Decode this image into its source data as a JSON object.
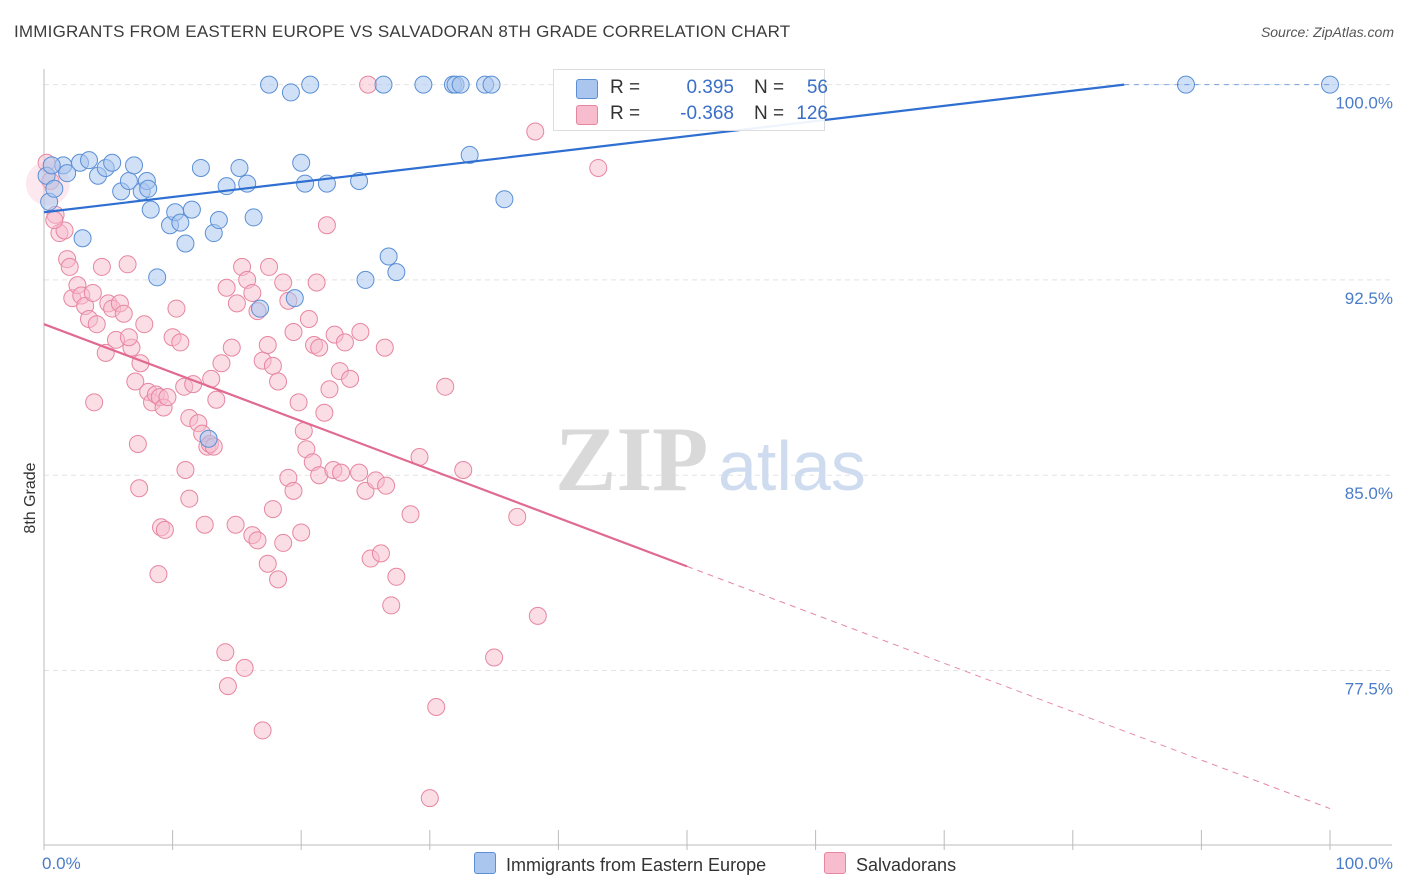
{
  "title": "IMMIGRANTS FROM EASTERN EUROPE VS SALVADORAN 8TH GRADE CORRELATION CHART",
  "source": "Source: ZipAtlas.com",
  "watermark": {
    "zip": "ZIP",
    "atlas": "atlas"
  },
  "colors": {
    "blue_fill": "#aac6ef",
    "blue_stroke": "#5b8fd6",
    "blue_line": "#2f6fd1",
    "pink_fill": "#f7bccd",
    "pink_stroke": "#e7869f",
    "pink_line": "#e06a92",
    "tick_text": "#4a7cc9",
    "grid": "#e3e3e3"
  },
  "legend": {
    "rows": [
      {
        "r_label": "R =",
        "r_value": "0.395",
        "n_label": "N =",
        "n_value": "56"
      },
      {
        "r_label": "R =",
        "r_value": "-0.368",
        "n_label": "N =",
        "n_value": "126"
      }
    ]
  },
  "chart_data": {
    "type": "scatter",
    "title": "IMMIGRANTS FROM EASTERN EUROPE VS SALVADORAN 8TH GRADE CORRELATION CHART",
    "xlabel": "",
    "ylabel": "8th Grade",
    "xlim": [
      0,
      100
    ],
    "ylim": [
      70.8,
      100.6
    ],
    "x_tick_labels": [
      "0.0%",
      "100.0%"
    ],
    "y_ticks": [
      77.5,
      85.0,
      92.5,
      100.0
    ],
    "y_tick_labels": [
      "77.5%",
      "85.0%",
      "92.5%",
      "100.0%"
    ],
    "grid": true,
    "legend_position": "bottom",
    "series": [
      {
        "name": "Immigrants from Eastern Europe",
        "color": "#aac6ef",
        "trend": {
          "x": [
            0,
            84.0
          ],
          "y": [
            95.1,
            100.0
          ],
          "dashed_from": 84.0,
          "dashed_to": 100.0
        },
        "points": [
          [
            0.2,
            96.5
          ],
          [
            0.4,
            95.5
          ],
          [
            0.8,
            96.0
          ],
          [
            1.5,
            96.9
          ],
          [
            1.8,
            96.6
          ],
          [
            2.8,
            97.0
          ],
          [
            3.5,
            97.1
          ],
          [
            4.2,
            96.5
          ],
          [
            4.8,
            96.8
          ],
          [
            5.3,
            97.0
          ],
          [
            6.0,
            95.9
          ],
          [
            6.6,
            96.3
          ],
          [
            7.0,
            96.9
          ],
          [
            7.6,
            95.9
          ],
          [
            8.0,
            96.3
          ],
          [
            8.3,
            95.2
          ],
          [
            8.8,
            92.6
          ],
          [
            9.8,
            94.6
          ],
          [
            10.2,
            95.1
          ],
          [
            10.6,
            94.7
          ],
          [
            11.0,
            93.9
          ],
          [
            11.5,
            95.2
          ],
          [
            12.2,
            96.8
          ],
          [
            13.2,
            94.3
          ],
          [
            13.6,
            94.8
          ],
          [
            14.2,
            96.1
          ],
          [
            15.2,
            96.8
          ],
          [
            15.8,
            96.2
          ],
          [
            16.3,
            94.9
          ],
          [
            16.8,
            91.4
          ],
          [
            17.5,
            100.0
          ],
          [
            19.2,
            99.7
          ],
          [
            20.0,
            97.0
          ],
          [
            20.3,
            96.2
          ],
          [
            20.7,
            100.0
          ],
          [
            19.5,
            91.8
          ],
          [
            22.0,
            96.2
          ],
          [
            24.5,
            96.3
          ],
          [
            25.0,
            92.5
          ],
          [
            26.4,
            100.0
          ],
          [
            26.8,
            93.4
          ],
          [
            27.4,
            92.8
          ],
          [
            29.5,
            100.0
          ],
          [
            31.8,
            100.0
          ],
          [
            32.0,
            100.0
          ],
          [
            32.4,
            100.0
          ],
          [
            33.1,
            97.3
          ],
          [
            34.3,
            100.0
          ],
          [
            34.8,
            100.0
          ],
          [
            35.8,
            95.6
          ],
          [
            88.8,
            100.0
          ],
          [
            100.0,
            100.0
          ],
          [
            0.6,
            96.9
          ],
          [
            12.8,
            86.4
          ],
          [
            8.1,
            96.0
          ],
          [
            3.0,
            94.1
          ]
        ]
      },
      {
        "name": "Salvadorans",
        "color": "#f7bccd",
        "trend": {
          "x": [
            0,
            50.0
          ],
          "y": [
            90.8,
            81.5
          ],
          "dashed_from": 50.0,
          "dashed_to": 100.0,
          "dashed_y_end": 72.2
        },
        "points": [
          [
            0.2,
            97.0
          ],
          [
            0.5,
            96.3
          ],
          [
            0.9,
            95.0
          ],
          [
            1.2,
            94.3
          ],
          [
            1.6,
            94.4
          ],
          [
            1.8,
            93.3
          ],
          [
            2.0,
            93.0
          ],
          [
            2.2,
            91.8
          ],
          [
            2.6,
            92.3
          ],
          [
            2.9,
            91.9
          ],
          [
            3.2,
            91.5
          ],
          [
            3.5,
            91.0
          ],
          [
            3.8,
            92.0
          ],
          [
            4.1,
            90.8
          ],
          [
            4.5,
            93.0
          ],
          [
            4.8,
            89.7
          ],
          [
            5.0,
            91.6
          ],
          [
            5.3,
            91.4
          ],
          [
            5.6,
            90.2
          ],
          [
            5.9,
            91.6
          ],
          [
            6.2,
            91.2
          ],
          [
            6.5,
            93.1
          ],
          [
            6.8,
            89.9
          ],
          [
            7.1,
            88.6
          ],
          [
            7.5,
            89.3
          ],
          [
            7.8,
            90.8
          ],
          [
            8.1,
            88.2
          ],
          [
            8.4,
            87.8
          ],
          [
            8.7,
            88.1
          ],
          [
            9.0,
            88.0
          ],
          [
            9.3,
            87.6
          ],
          [
            9.6,
            88.0
          ],
          [
            10.0,
            90.3
          ],
          [
            10.3,
            91.4
          ],
          [
            10.6,
            90.1
          ],
          [
            10.9,
            88.4
          ],
          [
            11.3,
            87.2
          ],
          [
            11.6,
            88.5
          ],
          [
            12.0,
            87.0
          ],
          [
            12.3,
            86.6
          ],
          [
            12.7,
            86.1
          ],
          [
            13.0,
            88.7
          ],
          [
            13.4,
            87.9
          ],
          [
            13.8,
            89.3
          ],
          [
            14.2,
            92.2
          ],
          [
            14.6,
            89.9
          ],
          [
            15.0,
            91.6
          ],
          [
            15.4,
            93.0
          ],
          [
            15.8,
            92.5
          ],
          [
            16.2,
            92.0
          ],
          [
            16.6,
            91.3
          ],
          [
            17.0,
            89.4
          ],
          [
            17.4,
            90.0
          ],
          [
            17.8,
            89.2
          ],
          [
            18.2,
            88.6
          ],
          [
            18.6,
            92.4
          ],
          [
            19.0,
            91.7
          ],
          [
            19.4,
            90.5
          ],
          [
            19.8,
            87.8
          ],
          [
            20.2,
            86.7
          ],
          [
            20.6,
            91.0
          ],
          [
            21.0,
            90.0
          ],
          [
            21.4,
            89.9
          ],
          [
            21.8,
            87.4
          ],
          [
            22.2,
            88.3
          ],
          [
            22.6,
            90.4
          ],
          [
            23.0,
            89.0
          ],
          [
            23.4,
            90.1
          ],
          [
            23.8,
            88.7
          ],
          [
            3.9,
            87.8
          ],
          [
            7.3,
            86.2
          ],
          [
            7.4,
            84.5
          ],
          [
            8.9,
            81.2
          ],
          [
            9.1,
            83.0
          ],
          [
            11.0,
            85.2
          ],
          [
            11.3,
            84.1
          ],
          [
            12.5,
            83.1
          ],
          [
            12.9,
            86.2
          ],
          [
            14.1,
            78.2
          ],
          [
            14.3,
            76.9
          ],
          [
            14.9,
            83.1
          ],
          [
            15.6,
            77.6
          ],
          [
            16.2,
            82.7
          ],
          [
            16.6,
            82.5
          ],
          [
            17.0,
            75.2
          ],
          [
            17.4,
            81.6
          ],
          [
            17.8,
            83.7
          ],
          [
            18.2,
            81.0
          ],
          [
            18.6,
            82.4
          ],
          [
            19.0,
            84.9
          ],
          [
            19.4,
            84.4
          ],
          [
            20.0,
            82.8
          ],
          [
            20.4,
            86.0
          ],
          [
            20.9,
            85.5
          ],
          [
            21.4,
            85.0
          ],
          [
            22.5,
            85.2
          ],
          [
            23.1,
            85.1
          ],
          [
            24.5,
            85.1
          ],
          [
            25.0,
            84.4
          ],
          [
            25.4,
            81.8
          ],
          [
            25.8,
            84.8
          ],
          [
            26.2,
            82.0
          ],
          [
            26.6,
            84.6
          ],
          [
            27.0,
            80.0
          ],
          [
            27.4,
            81.1
          ],
          [
            28.5,
            83.5
          ],
          [
            29.2,
            85.7
          ],
          [
            30.5,
            76.1
          ],
          [
            30.0,
            72.6
          ],
          [
            31.2,
            88.4
          ],
          [
            32.6,
            85.2
          ],
          [
            35.0,
            78.0
          ],
          [
            36.8,
            83.4
          ],
          [
            38.4,
            79.6
          ],
          [
            38.2,
            98.2
          ],
          [
            43.1,
            96.8
          ],
          [
            25.2,
            100.0
          ],
          [
            24.6,
            90.5
          ],
          [
            22.0,
            94.6
          ],
          [
            21.2,
            92.4
          ],
          [
            26.5,
            89.9
          ],
          [
            9.4,
            82.9
          ],
          [
            17.5,
            93.0
          ],
          [
            13.2,
            86.1
          ],
          [
            6.6,
            90.3
          ],
          [
            0.8,
            94.8
          ]
        ]
      }
    ]
  }
}
